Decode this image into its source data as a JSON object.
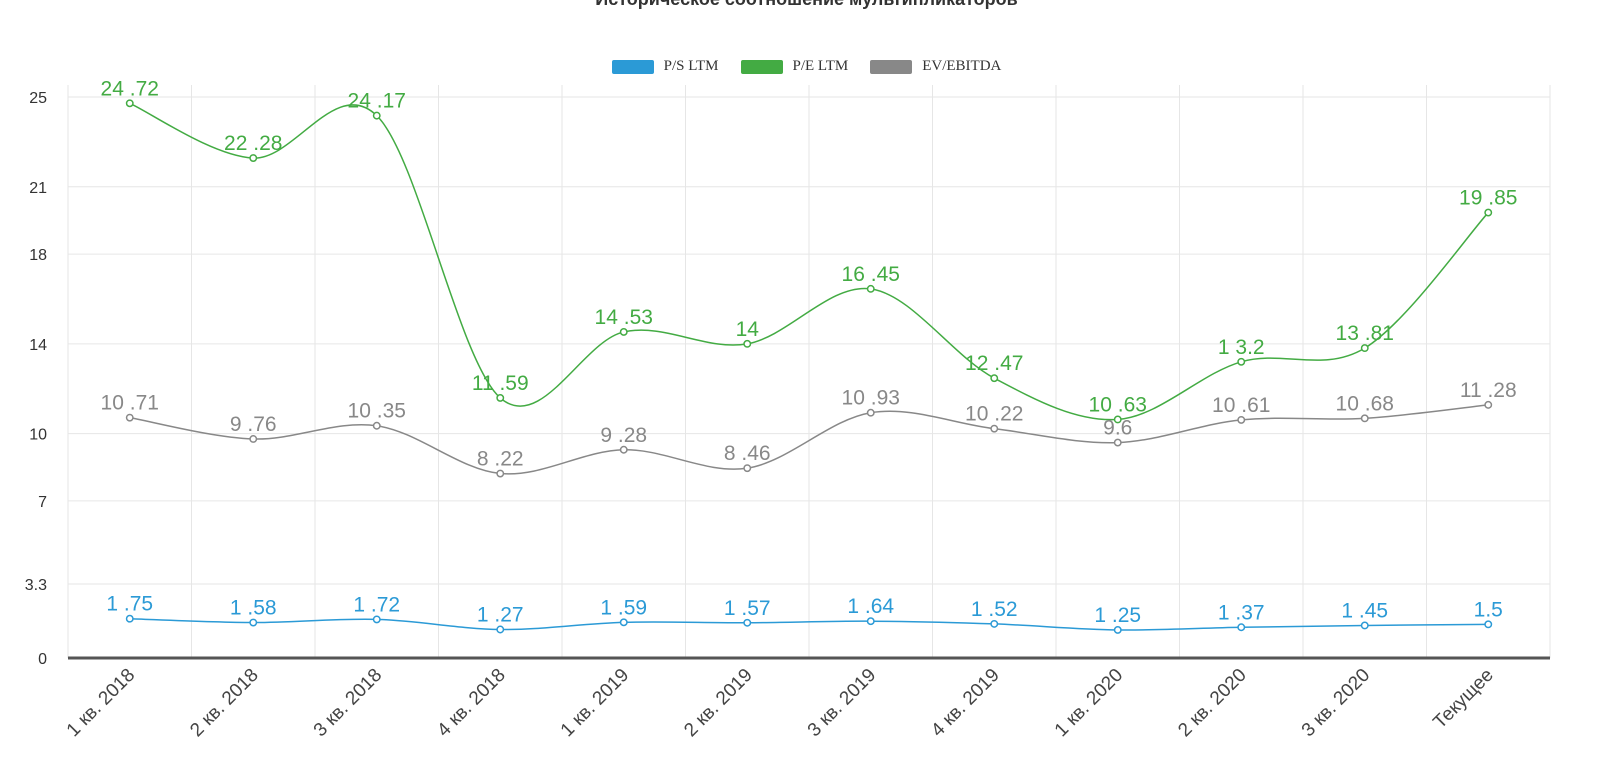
{
  "title": "Историческое соотношение мультипликаторов",
  "chart_data": {
    "type": "line",
    "title": "Историческое соотношение мультипликаторов",
    "categories": [
      "1 кв. 2018",
      "2 кв. 2018",
      "3 кв. 2018",
      "4 кв. 2018",
      "1 кв. 2019",
      "2 кв. 2019",
      "3 кв. 2019",
      "4 кв. 2019",
      "1 кв. 2020",
      "2 кв. 2020",
      "3 кв. 2020",
      "Текущее"
    ],
    "y_tick_labels": [
      "0",
      "3.3",
      "7",
      "10",
      "14",
      "18",
      "21",
      "25"
    ],
    "ylim": [
      0,
      25
    ],
    "grid": true,
    "legend_position": "top-center",
    "series": [
      {
        "name": "P/S LTM",
        "color": "#2b9ad6",
        "values": [
          1.75,
          1.58,
          1.72,
          1.27,
          1.59,
          1.57,
          1.64,
          1.52,
          1.25,
          1.37,
          1.45,
          1.5
        ],
        "labels": [
          "1 .75",
          "1 .58",
          "1 .72",
          "1 .27",
          "1 .59",
          "1 .57",
          "1 .64",
          "1 .52",
          "1 .25",
          "1 .37",
          "1 .45",
          "1.5"
        ]
      },
      {
        "name": "P/E LTM",
        "color": "#43ab43",
        "values": [
          24.72,
          22.28,
          24.17,
          11.59,
          14.53,
          14,
          16.45,
          12.47,
          10.63,
          13.2,
          13.81,
          19.85
        ],
        "labels": [
          "24 .72",
          "22 .28",
          "24 .17",
          "11 .59",
          "14 .53",
          "14",
          "16 .45",
          "12 .47",
          "10 .63",
          "1 3.2",
          "13 .81",
          "19 .85"
        ]
      },
      {
        "name": "EV/EBITDA",
        "color": "#888888",
        "values": [
          10.71,
          9.76,
          10.35,
          8.22,
          9.28,
          8.46,
          10.93,
          10.22,
          9.6,
          10.61,
          10.68,
          11.28
        ],
        "labels": [
          "10 .71",
          "9 .76",
          "10 .35",
          "8 .22",
          "9 .28",
          "8 .46",
          "10 .93",
          "10 .22",
          "9.6",
          "10 .61",
          "10 .68",
          "11 .28"
        ]
      }
    ]
  }
}
